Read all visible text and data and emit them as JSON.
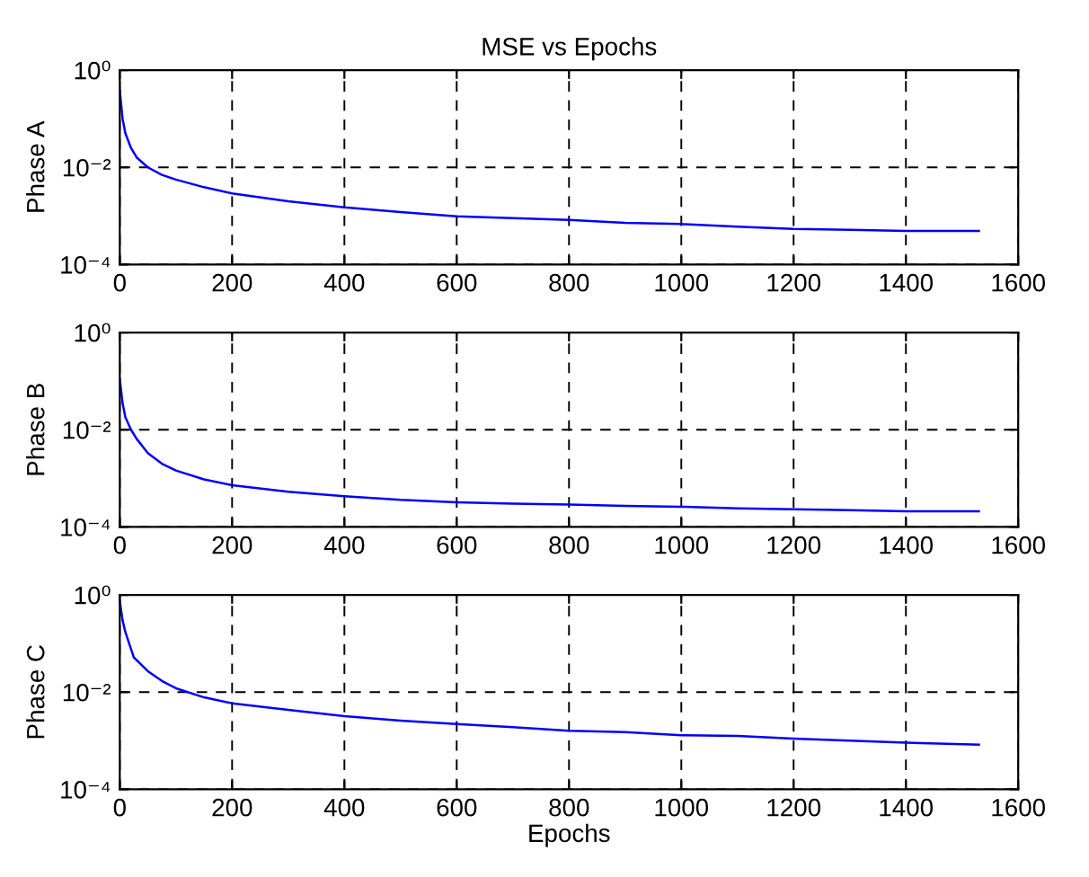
{
  "chart_data": [
    {
      "type": "line",
      "title": "MSE vs Epochs",
      "ylabel": "Phase A",
      "log": "y",
      "grid": true,
      "line_style": "solid",
      "marker": "none",
      "xlim": [
        0,
        1600
      ],
      "xticks": [
        0,
        200,
        400,
        600,
        800,
        1000,
        1200,
        1400,
        1600
      ],
      "ylim": [
        0.0001,
        1
      ],
      "yticks": [
        {
          "value": 0.0001,
          "label": "10⁻⁴"
        },
        {
          "value": 0.01,
          "label": "10⁻²"
        },
        {
          "value": 1,
          "label": "10⁰"
        }
      ],
      "series": [
        {
          "color": "#0000ff",
          "x": [
            0,
            5,
            10,
            20,
            30,
            50,
            75,
            100,
            150,
            200,
            300,
            400,
            500,
            600,
            700,
            800,
            900,
            1000,
            1100,
            1200,
            1300,
            1400,
            1530
          ],
          "values": [
            0.38,
            0.1,
            0.05,
            0.025,
            0.016,
            0.01,
            0.007,
            0.0056,
            0.0039,
            0.0029,
            0.002,
            0.0015,
            0.0012,
            0.00098,
            0.0009,
            0.00083,
            0.00072,
            0.00068,
            0.0006,
            0.00054,
            0.00052,
            0.00049,
            0.00049
          ]
        }
      ]
    },
    {
      "type": "line",
      "ylabel": "Phase B",
      "log": "y",
      "grid": true,
      "line_style": "solid",
      "marker": "none",
      "xlim": [
        0,
        1600
      ],
      "xticks": [
        0,
        200,
        400,
        600,
        800,
        1000,
        1200,
        1400,
        1600
      ],
      "ylim": [
        0.0001,
        1
      ],
      "yticks": [
        {
          "value": 0.0001,
          "label": "10⁻⁴"
        },
        {
          "value": 0.01,
          "label": "10⁻²"
        },
        {
          "value": 1,
          "label": "10⁰"
        }
      ],
      "series": [
        {
          "color": "#0000ff",
          "x": [
            0,
            5,
            10,
            20,
            30,
            50,
            75,
            100,
            150,
            200,
            300,
            400,
            500,
            600,
            700,
            800,
            900,
            1000,
            1100,
            1200,
            1300,
            1400,
            1530
          ],
          "values": [
            0.11,
            0.035,
            0.018,
            0.01,
            0.0065,
            0.0033,
            0.002,
            0.00145,
            0.00095,
            0.00072,
            0.00053,
            0.00043,
            0.00036,
            0.00032,
            0.0003,
            0.00029,
            0.00027,
            0.00026,
            0.00024,
            0.00023,
            0.00022,
            0.00021,
            0.00021
          ]
        }
      ]
    },
    {
      "type": "line",
      "ylabel": "Phase C",
      "xlabel": "Epochs",
      "log": "y",
      "grid": true,
      "line_style": "solid",
      "marker": "none",
      "xlim": [
        0,
        1600
      ],
      "xticks": [
        0,
        200,
        400,
        600,
        800,
        1000,
        1200,
        1400,
        1600
      ],
      "ylim": [
        0.0001,
        1
      ],
      "yticks": [
        {
          "value": 0.0001,
          "label": "10⁻⁴"
        },
        {
          "value": 0.01,
          "label": "10⁻²"
        },
        {
          "value": 1,
          "label": "10⁰"
        }
      ],
      "series": [
        {
          "color": "#0000ff",
          "x": [
            0,
            5,
            10,
            25,
            50,
            75,
            100,
            150,
            200,
            300,
            400,
            500,
            600,
            700,
            800,
            900,
            1000,
            1100,
            1200,
            1300,
            1400,
            1530
          ],
          "values": [
            0.74,
            0.3,
            0.17,
            0.052,
            0.027,
            0.017,
            0.012,
            0.0078,
            0.0059,
            0.0043,
            0.0032,
            0.0026,
            0.0022,
            0.0019,
            0.0016,
            0.0015,
            0.0013,
            0.00125,
            0.0011,
            0.001,
            0.00091,
            0.00083
          ]
        }
      ]
    }
  ]
}
